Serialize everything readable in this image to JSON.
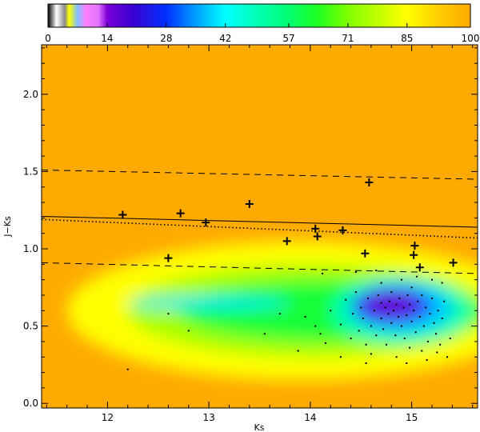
{
  "chart_data": [
    {
      "type": "colorbar",
      "ticks": [
        0,
        14,
        28,
        42,
        57,
        71,
        85,
        100
      ],
      "tick_labels": [
        "0",
        "14",
        "28",
        "42",
        "57",
        "71",
        "85",
        "100"
      ],
      "range": [
        0,
        100
      ],
      "colormap": [
        {
          "v": 0,
          "color": "#000000"
        },
        {
          "v": 2,
          "color": "#ffffff"
        },
        {
          "v": 4,
          "color": "#8a8a8a"
        },
        {
          "v": 5,
          "color": "#ffff00"
        },
        {
          "v": 7,
          "color": "#7fbfff"
        },
        {
          "v": 9,
          "color": "#ff80ff"
        },
        {
          "v": 12,
          "color": "#e070ff"
        },
        {
          "v": 14,
          "color": "#7a00d8"
        },
        {
          "v": 20,
          "color": "#3a00d0"
        },
        {
          "v": 28,
          "color": "#0030ff"
        },
        {
          "v": 35,
          "color": "#00a0ff"
        },
        {
          "v": 42,
          "color": "#00ffff"
        },
        {
          "v": 50,
          "color": "#00ffb0"
        },
        {
          "v": 57,
          "color": "#00ff70"
        },
        {
          "v": 64,
          "color": "#20ff20"
        },
        {
          "v": 71,
          "color": "#80ff00"
        },
        {
          "v": 78,
          "color": "#c0ff00"
        },
        {
          "v": 85,
          "color": "#ffff00"
        },
        {
          "v": 92,
          "color": "#ffd000"
        },
        {
          "v": 100,
          "color": "#ffaa00"
        }
      ]
    },
    {
      "type": "scatter",
      "xlabel": "Ks",
      "ylabel": "J−Ks",
      "xlim": [
        11.35,
        15.65
      ],
      "ylim": [
        -0.03,
        2.32
      ],
      "xticks": [
        12,
        13,
        14,
        15
      ],
      "xtick_labels": [
        "12",
        "13",
        "14",
        "15"
      ],
      "yticks": [
        0.0,
        0.5,
        1.0,
        1.5,
        2.0
      ],
      "ytick_labels": [
        "0.0",
        "0.5",
        "1.0",
        "1.5",
        "2.0"
      ],
      "background_color": "#ffaa00",
      "density_map": {
        "description_level": "colour = percent value on colorbar scale",
        "blobs": [
          {
            "cx": 13.9,
            "cy": 0.6,
            "rx": 2.3,
            "ry": 0.45,
            "level": 85
          },
          {
            "cx": 14.0,
            "cy": 0.6,
            "rx": 1.8,
            "ry": 0.3,
            "level": 75
          },
          {
            "cx": 14.2,
            "cy": 0.6,
            "rx": 1.5,
            "ry": 0.2,
            "level": 62
          },
          {
            "cx": 14.9,
            "cy": 0.6,
            "rx": 0.7,
            "ry": 0.22,
            "level": 50
          },
          {
            "cx": 14.9,
            "cy": 0.62,
            "rx": 0.5,
            "ry": 0.16,
            "level": 38
          },
          {
            "cx": 13.0,
            "cy": 0.65,
            "rx": 0.8,
            "ry": 0.035,
            "level": 40
          },
          {
            "cx": 14.8,
            "cy": 0.63,
            "rx": 0.4,
            "ry": 0.12,
            "level": 28
          },
          {
            "cx": 14.8,
            "cy": 0.64,
            "rx": 0.28,
            "ry": 0.08,
            "level": 16
          }
        ]
      },
      "lines": [
        {
          "style": "solid",
          "points": [
            [
              11.35,
              1.21
            ],
            [
              15.65,
              1.14
            ]
          ]
        },
        {
          "style": "dotted",
          "points": [
            [
              11.35,
              1.19
            ],
            [
              15.65,
              1.07
            ]
          ]
        },
        {
          "style": "dashed",
          "points": [
            [
              11.35,
              1.51
            ],
            [
              15.65,
              1.45
            ]
          ]
        },
        {
          "style": "dashed",
          "points": [
            [
              11.35,
              0.91
            ],
            [
              15.65,
              0.84
            ]
          ]
        }
      ],
      "series": [
        {
          "marker": "plus",
          "points": [
            [
              12.15,
              1.22
            ],
            [
              12.72,
              1.23
            ],
            [
              12.97,
              1.17
            ],
            [
              13.4,
              1.29
            ],
            [
              12.6,
              0.94
            ],
            [
              13.77,
              1.05
            ],
            [
              14.05,
              1.13
            ],
            [
              14.07,
              1.08
            ],
            [
              14.32,
              1.12
            ],
            [
              14.58,
              1.43
            ],
            [
              14.54,
              0.97
            ],
            [
              15.03,
              1.02
            ],
            [
              15.02,
              0.96
            ],
            [
              15.08,
              0.88
            ],
            [
              15.41,
              0.91
            ]
          ]
        },
        {
          "marker": "dot",
          "points": [
            [
              12.2,
              0.22
            ],
            [
              12.6,
              0.58
            ],
            [
              12.8,
              0.47
            ],
            [
              13.55,
              0.45
            ],
            [
              13.7,
              0.58
            ],
            [
              13.88,
              0.34
            ],
            [
              13.95,
              0.56
            ],
            [
              14.05,
              0.5
            ],
            [
              14.1,
              0.45
            ],
            [
              14.12,
              0.84
            ],
            [
              14.15,
              0.39
            ],
            [
              14.2,
              0.6
            ],
            [
              14.3,
              0.51
            ],
            [
              14.35,
              0.67
            ],
            [
              14.4,
              0.42
            ],
            [
              14.42,
              0.58
            ],
            [
              14.45,
              0.72
            ],
            [
              14.48,
              0.47
            ],
            [
              14.5,
              0.62
            ],
            [
              14.52,
              0.55
            ],
            [
              14.55,
              0.38
            ],
            [
              14.57,
              0.68
            ],
            [
              14.6,
              0.5
            ],
            [
              14.6,
              0.32
            ],
            [
              14.63,
              0.6
            ],
            [
              14.65,
              0.44
            ],
            [
              14.67,
              0.7
            ],
            [
              14.7,
              0.55
            ],
            [
              14.7,
              0.65
            ],
            [
              14.72,
              0.48
            ],
            [
              14.74,
              0.62
            ],
            [
              14.75,
              0.38
            ],
            [
              14.77,
              0.58
            ],
            [
              14.78,
              0.66
            ],
            [
              14.8,
              0.52
            ],
            [
              14.8,
              0.72
            ],
            [
              14.82,
              0.6
            ],
            [
              14.84,
              0.44
            ],
            [
              14.85,
              0.64
            ],
            [
              14.87,
              0.56
            ],
            [
              14.88,
              0.68
            ],
            [
              14.9,
              0.5
            ],
            [
              14.92,
              0.62
            ],
            [
              14.93,
              0.42
            ],
            [
              14.95,
              0.57
            ],
            [
              14.96,
              0.7
            ],
            [
              14.98,
              0.64
            ],
            [
              15.0,
              0.53
            ],
            [
              15.0,
              0.75
            ],
            [
              15.02,
              0.6
            ],
            [
              15.04,
              0.46
            ],
            [
              15.06,
              0.66
            ],
            [
              15.08,
              0.56
            ],
            [
              15.1,
              0.7
            ],
            [
              15.12,
              0.5
            ],
            [
              15.14,
              0.62
            ],
            [
              15.16,
              0.4
            ],
            [
              15.18,
              0.58
            ],
            [
              15.2,
              0.68
            ],
            [
              15.22,
              0.52
            ],
            [
              15.24,
              0.45
            ],
            [
              15.26,
              0.6
            ],
            [
              15.28,
              0.38
            ],
            [
              15.3,
              0.55
            ],
            [
              15.32,
              0.66
            ],
            [
              15.35,
              0.3
            ],
            [
              14.85,
              0.3
            ],
            [
              14.98,
              0.36
            ],
            [
              15.1,
              0.34
            ],
            [
              15.2,
              0.8
            ],
            [
              15.05,
              0.82
            ],
            [
              14.9,
              0.8
            ],
            [
              14.7,
              0.78
            ],
            [
              14.65,
              0.86
            ],
            [
              14.45,
              0.85
            ],
            [
              14.3,
              0.3
            ],
            [
              14.95,
              0.26
            ],
            [
              15.3,
              0.78
            ],
            [
              15.38,
              0.42
            ],
            [
              15.15,
              0.28
            ],
            [
              14.55,
              0.26
            ],
            [
              15.25,
              0.33
            ]
          ]
        }
      ]
    }
  ]
}
